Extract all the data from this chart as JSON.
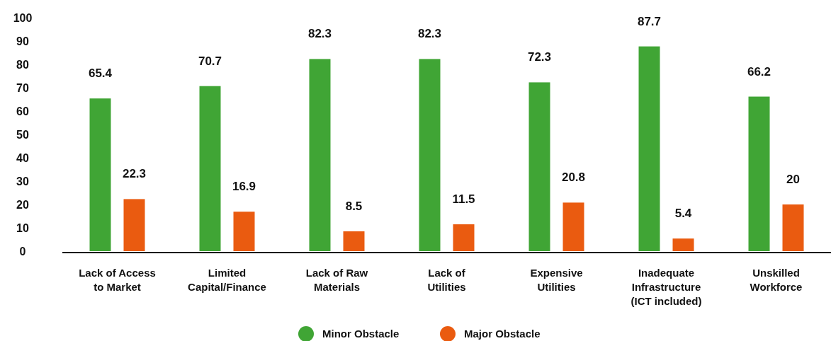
{
  "chart_data": {
    "type": "bar",
    "categories": [
      "Lack of Access to Market",
      "Limited Capital/Finance",
      "Lack of Raw Materials",
      "Lack of Utilities",
      "Expensive Utilities",
      "Inadequate Infrastructure (ICT included)",
      "Unskilled Workforce"
    ],
    "series": [
      {
        "name": "Minor Obstacle",
        "color": "#40a535",
        "values": [
          65.4,
          70.7,
          82.3,
          82.3,
          72.3,
          87.7,
          66.2
        ]
      },
      {
        "name": "Major Obstacle",
        "color": "#ea5b10",
        "values": [
          22.3,
          16.9,
          8.5,
          11.5,
          20.8,
          5.4,
          20
        ]
      }
    ],
    "ylim": [
      0,
      100
    ],
    "yticks": [
      0,
      10,
      20,
      30,
      40,
      50,
      60,
      70,
      80,
      90,
      100
    ],
    "grid": false,
    "legend": "bottom",
    "data_labels": true
  }
}
